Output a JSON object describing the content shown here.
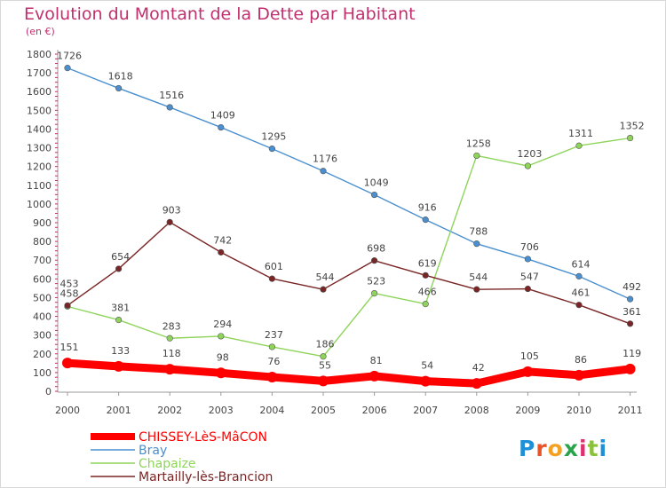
{
  "chart_data": {
    "type": "line",
    "title": "Evolution du Montant de la Dette par Habitant",
    "subtitle": "(en €)",
    "categories": [
      "2000",
      "2001",
      "2002",
      "2003",
      "2004",
      "2005",
      "2006",
      "2007",
      "2008",
      "2009",
      "2010",
      "2011"
    ],
    "y_ticks": [
      0,
      100,
      200,
      300,
      400,
      500,
      600,
      700,
      800,
      900,
      1000,
      1100,
      1200,
      1300,
      1400,
      1500,
      1600,
      1700,
      1800
    ],
    "ylim": [
      0,
      1800
    ],
    "grid": false,
    "legend_position": "bottom-left",
    "series": [
      {
        "name": "CHISSEY-LèS-MâCON",
        "color": "#ff0000",
        "values": [
          151,
          133,
          118,
          98,
          76,
          55,
          81,
          54,
          42,
          105,
          86,
          119
        ]
      },
      {
        "name": "Bray",
        "color": "#4a8fd0",
        "values": [
          1726,
          1618,
          1516,
          1409,
          1295,
          1176,
          1049,
          916,
          788,
          706,
          614,
          492
        ]
      },
      {
        "name": "Chapaize",
        "color": "#8ed45a",
        "values": [
          453,
          381,
          283,
          294,
          237,
          186,
          523,
          466,
          1258,
          1203,
          1311,
          1352
        ]
      },
      {
        "name": "Martailly-lès-Brancion",
        "color": "#7a2525",
        "values": [
          458,
          654,
          903,
          742,
          601,
          544,
          698,
          619,
          544,
          547,
          461,
          361
        ]
      }
    ]
  },
  "logo": {
    "text": "Proxiti"
  }
}
